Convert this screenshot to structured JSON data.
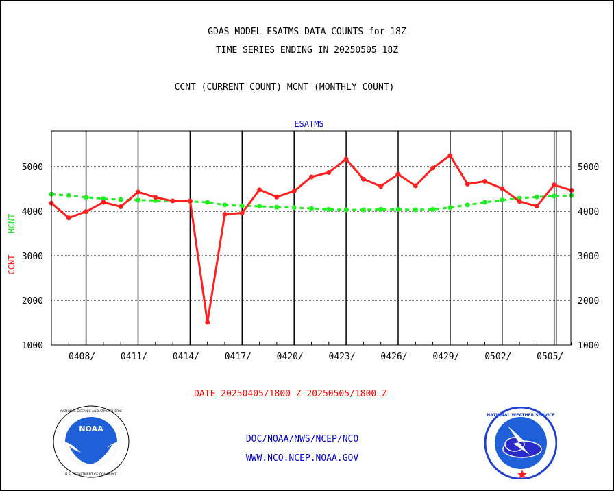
{
  "header": {
    "title_line1": "GDAS MODEL ESATMS DATA COUNTS for 18Z",
    "title_line2": "TIME SERIES ENDING IN 20250505 18Z",
    "subtitle": "CCNT (CURRENT COUNT) MCNT (MONTHLY COUNT)"
  },
  "footer": {
    "date_range": "DATE 20250405/1800 Z-20250505/1800 Z",
    "link1": "DOC/NOAA/NWS/NCEP/NCO",
    "link2": "WWW.NCO.NCEP.NOAA.GOV"
  },
  "logos": {
    "left": "noaa-logo",
    "right": "national-weather-service-logo"
  },
  "chart_data": {
    "type": "line",
    "title": "ESATMS",
    "ylabel_ccnt": "CCNT",
    "ylabel_mcnt": "MCNT",
    "ylim": [
      1000,
      5800
    ],
    "yticks": [
      "1000",
      "2000",
      "3000",
      "4000",
      "5000"
    ],
    "xticks": [
      "0408/",
      "0411/",
      "0414/",
      "0417/",
      "0420/",
      "0423/",
      "0426/",
      "0429/",
      "0502/",
      "0505/"
    ],
    "grid": true,
    "colors": {
      "ccnt": "#ff2020",
      "mcnt": "#22ee22",
      "title": "#0000cc",
      "grid": "#000000"
    },
    "series": [
      {
        "name": "CCNT",
        "values": [
          4180,
          3850,
          3990,
          4200,
          4100,
          4430,
          4310,
          4230,
          4230,
          1510,
          3930,
          3960,
          4480,
          4320,
          4450,
          4770,
          4870,
          5170,
          4720,
          4560,
          4830,
          4570,
          4970,
          5250,
          4610,
          4670,
          4510,
          4220,
          4110,
          4590,
          4470
        ]
      },
      {
        "name": "MCNT",
        "values": [
          4380,
          4350,
          4310,
          4280,
          4260,
          4250,
          4240,
          4230,
          4220,
          4200,
          4140,
          4120,
          4110,
          4090,
          4080,
          4060,
          4040,
          4030,
          4030,
          4040,
          4040,
          4030,
          4040,
          4080,
          4140,
          4200,
          4250,
          4290,
          4320,
          4340,
          4350
        ]
      }
    ]
  }
}
